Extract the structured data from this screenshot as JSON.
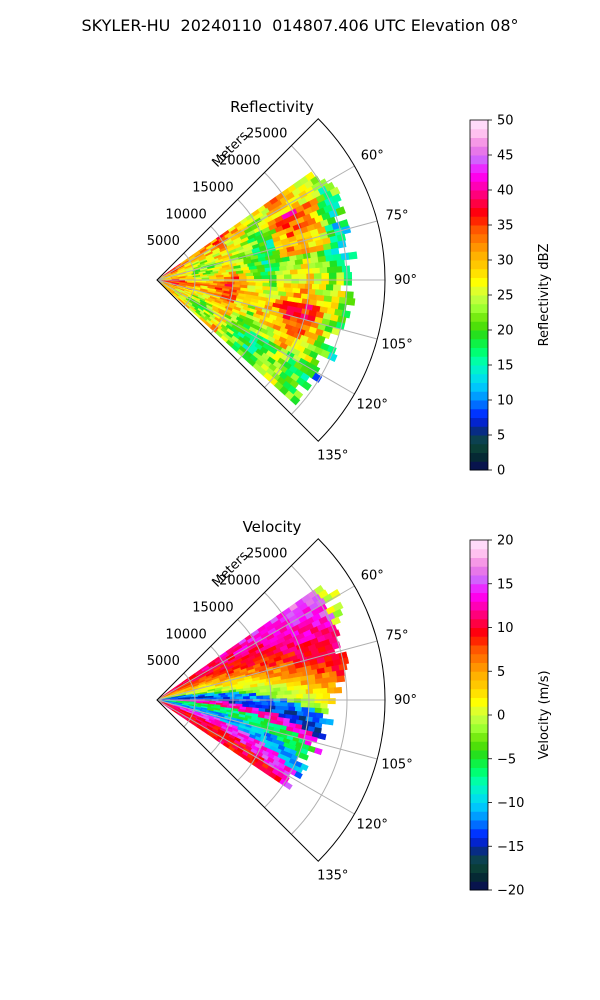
{
  "figure": {
    "suptitle": "SKYLER-HU  20240110  014807.406 UTC Elevation 08°"
  },
  "chart_data": [
    {
      "type": "heatmap",
      "subtype": "polar-sector PPI",
      "title": "Reflectivity",
      "range_label": "Meters",
      "range_ticks": [
        5000,
        10000,
        15000,
        20000,
        25000
      ],
      "range_max": 30000,
      "theta_ticks": [
        "60°",
        "75°",
        "90°",
        "105°",
        "120°",
        "135°"
      ],
      "theta_range_deg": [
        45,
        135
      ],
      "data_extent": {
        "azimuth_deg": [
          55,
          132
        ],
        "max_range_m": [
          26000,
          24000
        ]
      },
      "colorbar": {
        "label": "Reflectivity dBZ",
        "min": 0,
        "max": 50,
        "ticks": [
          0,
          5,
          10,
          15,
          20,
          25,
          30,
          35,
          40,
          45,
          50
        ],
        "colors": [
          "#0a0a5a",
          "#052a33",
          "#0d4a3a",
          "#062a8a",
          "#0020ff",
          "#0077ff",
          "#00bfff",
          "#00e6e6",
          "#00ffb0",
          "#00ff60",
          "#20e020",
          "#60e000",
          "#9aff30",
          "#d0ff40",
          "#ffff00",
          "#ffd000",
          "#ffb000",
          "#ff8000",
          "#ff5000",
          "#ff0000",
          "#ff0050",
          "#ff00aa",
          "#ff00ff",
          "#d060ff",
          "#f080e0",
          "#ffc0f0",
          "#ffe6ff"
        ]
      }
    },
    {
      "type": "heatmap",
      "subtype": "polar-sector PPI",
      "title": "Velocity",
      "range_label": "Meters",
      "range_ticks": [
        5000,
        10000,
        15000,
        20000,
        25000
      ],
      "range_max": 30000,
      "theta_ticks": [
        "60°",
        "75°",
        "90°",
        "105°",
        "120°",
        "135°"
      ],
      "theta_range_deg": [
        45,
        135
      ],
      "data_extent": {
        "azimuth_deg": [
          55,
          124
        ],
        "max_range_m": [
          27000,
          20000
        ]
      },
      "colorbar": {
        "label": "Velocity (m/s)",
        "min": -20,
        "max": 20,
        "ticks": [
          -20,
          -15,
          -10,
          -5,
          0,
          5,
          10,
          15,
          20
        ],
        "colors": [
          "#0a0a5a",
          "#052a33",
          "#0d4a3a",
          "#062a8a",
          "#0020ff",
          "#0077ff",
          "#00bfff",
          "#00e6e6",
          "#00ffb0",
          "#00ff60",
          "#20e020",
          "#60e000",
          "#9aff30",
          "#d0ff40",
          "#ffff00",
          "#ffd000",
          "#ffb000",
          "#ff8000",
          "#ff5000",
          "#ff0000",
          "#ff0050",
          "#ff00aa",
          "#ff00ff",
          "#d060ff",
          "#f080e0",
          "#ffc0f0",
          "#ffe6ff"
        ]
      }
    }
  ]
}
